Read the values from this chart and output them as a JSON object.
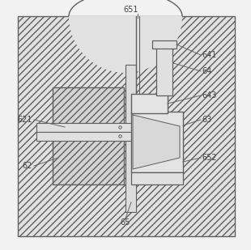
{
  "bg_outer_fc": "#e0e0e0",
  "bg_hatch": "////",
  "bg_hatch_color": "#c8c8c8",
  "block62_fc": "#d0d0d0",
  "block62_hatch": "////",
  "plain_fc": "#e8e8e8",
  "line_color": "#606060",
  "white_fc": "#f0f0f0",
  "label_fs": 7.0,
  "label_color": "#444444"
}
